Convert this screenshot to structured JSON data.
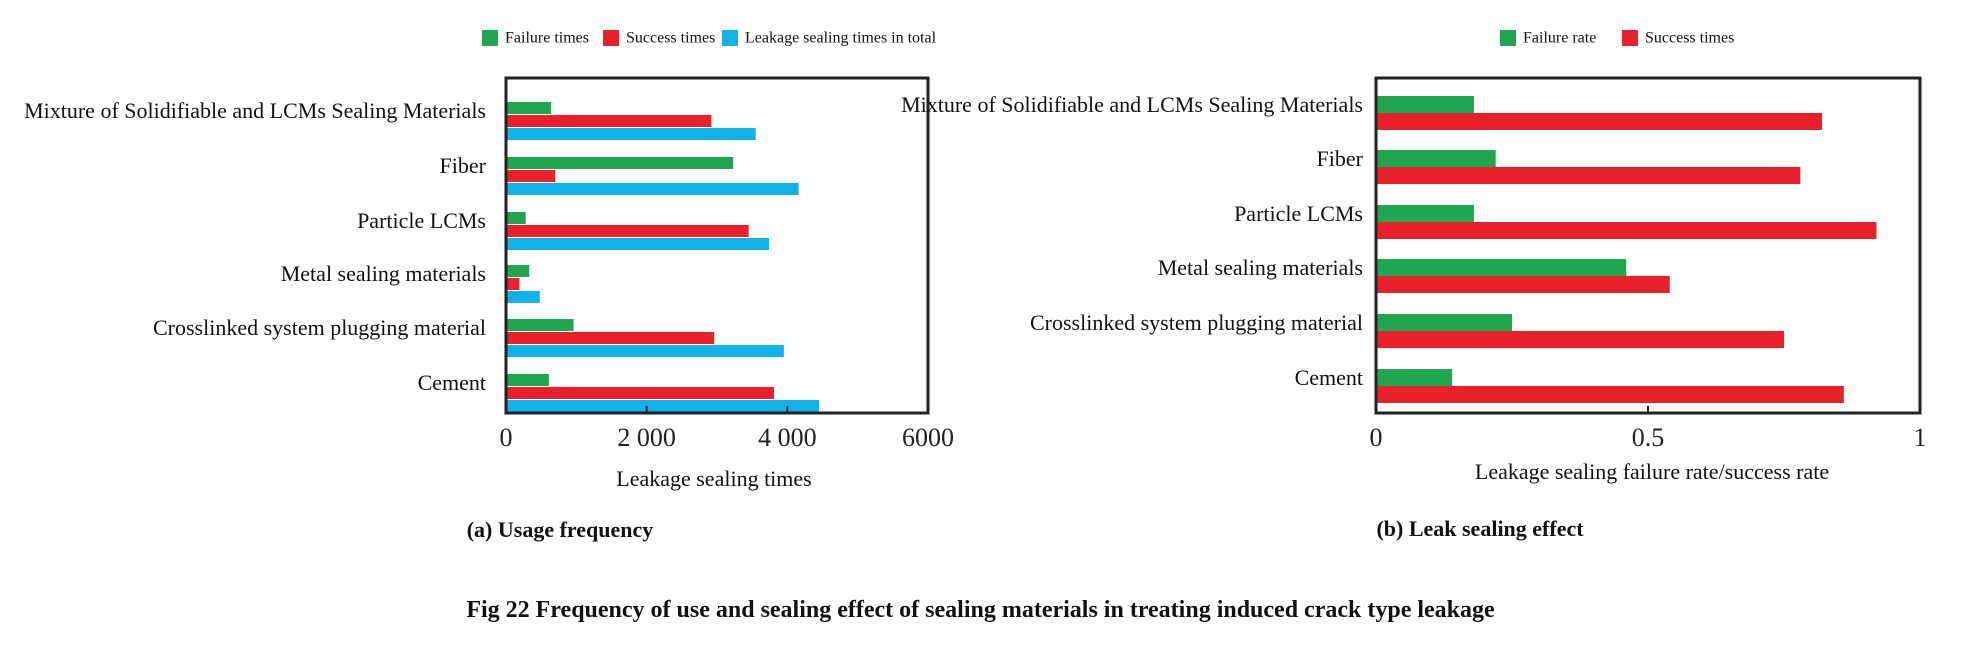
{
  "colors": {
    "failure": "#1fa64f",
    "success": "#e8212a",
    "total": "#11b1ea",
    "frame": "#222222"
  },
  "figure_caption": "Fig 22 Frequency of use and sealing effect of sealing materials in treating induced crack type leakage",
  "chart_data": [
    {
      "id": "a",
      "type": "bar",
      "orientation": "horizontal",
      "caption": "(a) Usage frequency",
      "xlabel": "Leakage sealing times",
      "ylabel": "",
      "xlim": [
        0,
        6000
      ],
      "ticks": [
        0,
        2000,
        4000,
        6000
      ],
      "tick_labels": [
        "0",
        "2 000",
        "4 000",
        "6000"
      ],
      "legend_position": "top",
      "categories": [
        "Mixture of Solidifiable and LCMs Sealing Materials",
        "Fiber",
        "Particle LCMs",
        "Metal sealing materials",
        "Crosslinked system plugging material",
        "Cement"
      ],
      "series": [
        {
          "name": "Failure times",
          "color_key": "failure",
          "values": [
            640,
            3230,
            280,
            330,
            960,
            610
          ]
        },
        {
          "name": "Success times",
          "color_key": "success",
          "values": [
            2920,
            700,
            3450,
            190,
            2960,
            3810
          ]
        },
        {
          "name": "Leakage sealing times in total",
          "color_key": "total",
          "values": [
            3550,
            4160,
            3740,
            480,
            3950,
            4450
          ]
        }
      ]
    },
    {
      "id": "b",
      "type": "bar",
      "orientation": "horizontal",
      "caption": "(b) Leak sealing effect",
      "xlabel": "Leakage sealing failure rate/success rate",
      "ylabel": "",
      "xlim": [
        0,
        1
      ],
      "ticks": [
        0,
        0.5,
        1
      ],
      "tick_labels": [
        "0",
        "0.5",
        "1"
      ],
      "legend_position": "top",
      "categories": [
        "Mixture of Solidifiable and LCMs Sealing Materials",
        "Fiber",
        "Particle LCMs",
        "Metal sealing materials",
        "Crosslinked system plugging material",
        "Cement"
      ],
      "series": [
        {
          "name": "Failure rate",
          "color_key": "failure",
          "values": [
            0.18,
            0.22,
            0.18,
            0.46,
            0.25,
            0.14
          ]
        },
        {
          "name": "Success times",
          "color_key": "success",
          "values": [
            0.82,
            0.78,
            0.92,
            0.54,
            0.75,
            0.86
          ]
        }
      ]
    }
  ]
}
